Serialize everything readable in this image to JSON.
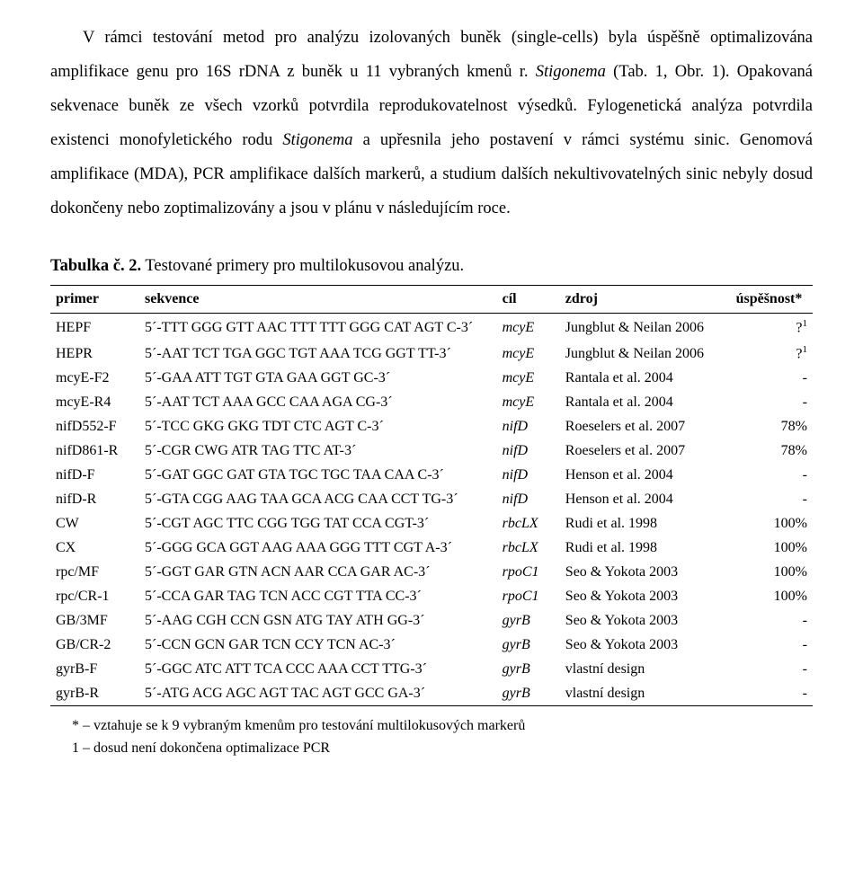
{
  "paragraph1_html": "V r&aacute;mci testov&aacute;n&iacute; metod pro anal&yacute;zu izolovan&yacute;ch bun&#283;k (single-cells) byla &uacute;sp&#283;&scaron;n&#283; optimalizov&aacute;na amplifikace genu pro 16S rDNA z bun&#283;k u 11 vybran&yacute;ch kmen&#367; r. <span class=\"italic\">Stigonema</span> (Tab. 1, Obr. 1). Opakovan&aacute; sekvenace bun&#283;k ze v&scaron;ech vzork&#367; potvrdila reprodukovatelnost v&yacute;sedk&#367;. Fylogenetick&aacute; anal&yacute;za potvrdila existenci monofyletick&eacute;ho rodu <span class=\"italic\">Stigonema</span> a up&#345;esnila jeho postaven&iacute; v r&aacute;mci syst&eacute;mu sinic. Genomov&aacute; amplifikace (MDA), PCR amplifikace dal&scaron;&iacute;ch marker&#367;, a studium dal&scaron;&iacute;ch nekultivovateln&yacute;ch sinic nebyly dosud dokon&#269;eny nebo zoptimalizov&aacute;ny a jsou v pl&aacute;nu v n&aacute;sleduj&iacute;c&iacute;m roce.",
  "table_title_bold": "Tabulka &#269;. 2.",
  "table_title_rest": " Testovan&eacute; primery pro multilokusovou anal&yacute;zu.",
  "headers": {
    "primer": "primer",
    "sekvence": "sekvence",
    "cil": "c&iacute;l",
    "zdroj": "zdroj",
    "uspesnost": "&uacute;sp&#283;&scaron;nost*"
  },
  "rows": [
    {
      "primer": "HEPF",
      "seq": "5&acute;-TTT GGG GTT AAC TTT TTT GGG CAT AGT C-3&acute;",
      "target": "mcyE",
      "src": "Jungblut &amp; Neilan 2006",
      "succ": "?<span class=\"sup\">1</span>"
    },
    {
      "primer": "HEPR",
      "seq": "5&acute;-AAT TCT TGA GGC TGT AAA TCG GGT TT-3&acute;",
      "target": "mcyE",
      "src": "Jungblut &amp; Neilan 2006",
      "succ": "?<span class=\"sup\">1</span>"
    },
    {
      "primer": "mcyE-F2",
      "seq": "5&acute;-GAA ATT TGT GTA GAA GGT GC-3&acute;",
      "target": "mcyE",
      "src": "Rantala et al. 2004",
      "succ": "-"
    },
    {
      "primer": "mcyE-R4",
      "seq": "5&acute;-AAT TCT AAA GCC CAA AGA CG-3&acute;",
      "target": "mcyE",
      "src": "Rantala et al. 2004",
      "succ": "-"
    },
    {
      "primer": "nifD552-F",
      "seq": "5&acute;-TCC GKG GKG TDT CTC AGT C-3&acute;",
      "target": "nifD",
      "src": "Roeselers et al. 2007",
      "succ": "78%"
    },
    {
      "primer": "nifD861-R",
      "seq": "5&acute;-CGR CWG ATR TAG TTC AT-3&acute;",
      "target": "nifD",
      "src": "Roeselers et al. 2007",
      "succ": "78%"
    },
    {
      "primer": "nifD-F",
      "seq": "5&acute;-GAT GGC GAT GTA TGC TGC TAA CAA C-3&acute;",
      "target": "nifD",
      "src": "Henson et al. 2004",
      "succ": "-"
    },
    {
      "primer": "nifD-R",
      "seq": "5&acute;-GTA CGG AAG TAA GCA ACG CAA CCT TG-3&acute;",
      "target": "nifD",
      "src": "Henson et al. 2004",
      "succ": "-"
    },
    {
      "primer": "CW",
      "seq": "5&acute;-CGT AGC TTC CGG TGG TAT CCA CGT-3&acute;",
      "target": "rbcLX",
      "src": "Rudi et al. 1998",
      "succ": "100%"
    },
    {
      "primer": "CX",
      "seq": "5&acute;-GGG GCA GGT AAG AAA GGG TTT CGT A-3&acute;",
      "target": "rbcLX",
      "src": "Rudi et al. 1998",
      "succ": "100%"
    },
    {
      "primer": "rpc/MF",
      "seq": "5&acute;-GGT GAR GTN ACN AAR CCA GAR AC-3&acute;",
      "target": "rpoC1",
      "src": "Seo &amp; Yokota 2003",
      "succ": "100%"
    },
    {
      "primer": "rpc/CR-1",
      "seq": "5&acute;-CCA GAR TAG TCN ACC CGT TTA CC-3&acute;",
      "target": "rpoC1",
      "src": "Seo &amp; Yokota 2003",
      "succ": "100%"
    },
    {
      "primer": "GB/3MF",
      "seq": "5&acute;-AAG CGH CCN GSN ATG TAY ATH GG-3&acute;",
      "target": "gyrB",
      "src": "Seo &amp; Yokota 2003",
      "succ": "-"
    },
    {
      "primer": "GB/CR-2",
      "seq": "5&acute;-CCN GCN GAR TCN CCY TCN AC-3&acute;",
      "target": "gyrB",
      "src": "Seo &amp; Yokota 2003",
      "succ": "-"
    },
    {
      "primer": "gyrB-F",
      "seq": "5&acute;-GGC ATC ATT TCA CCC AAA CCT TTG-3&acute;",
      "target": "gyrB",
      "src": "vlastn&iacute; design",
      "succ": "-"
    },
    {
      "primer": "gyrB-R",
      "seq": "5&acute;-ATG ACG AGC AGT TAC AGT GCC GA-3&acute;",
      "target": "gyrB",
      "src": "vlastn&iacute; design",
      "succ": "-"
    }
  ],
  "footnotes": {
    "f1": "* &ndash; vztahuje se k 9 vybran&yacute;m kmen&#367;m pro testov&aacute;n&iacute; multilokusov&yacute;ch marker&#367;",
    "f2": "1 &ndash; dosud nen&iacute; dokon&#269;ena optimalizace PCR"
  }
}
